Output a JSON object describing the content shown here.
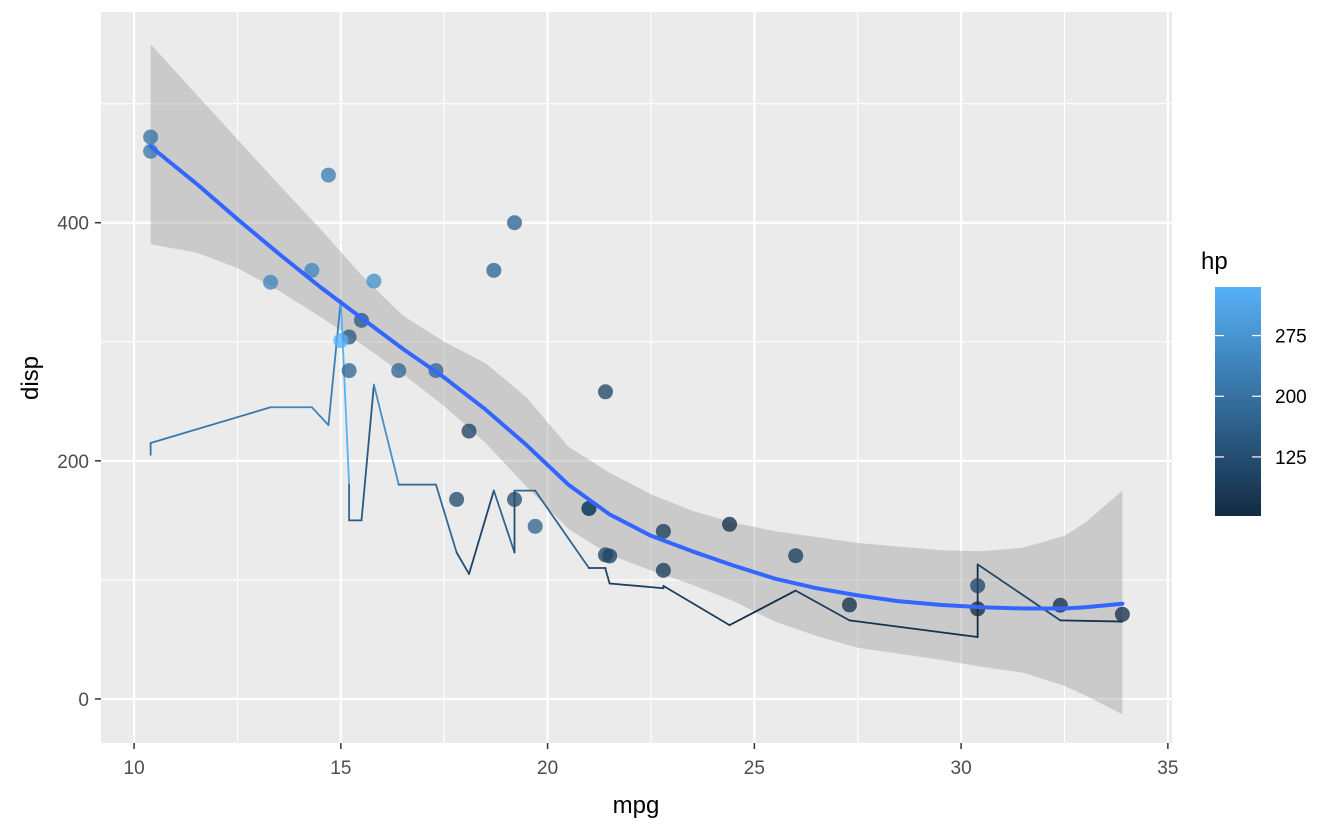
{
  "chart_data": {
    "type": "scatter",
    "title": "",
    "xlabel": "mpg",
    "ylabel": "disp",
    "xlim": [
      9.2,
      35.1
    ],
    "ylim": [
      -37,
      577
    ],
    "x_ticks": [
      10,
      15,
      20,
      25,
      30,
      35
    ],
    "x_tick_labels": [
      "10",
      "15",
      "20",
      "25",
      "30",
      "35"
    ],
    "y_ticks": [
      0,
      200,
      400
    ],
    "y_tick_labels": [
      "0",
      "200",
      "400"
    ],
    "grid": true,
    "legend": {
      "title": "hp",
      "placement": "right",
      "type": "colorbar",
      "range": [
        52,
        335
      ],
      "ticks": [
        125,
        200,
        275
      ],
      "tick_labels": [
        "125",
        "200",
        "275"
      ],
      "low_color": "#132B43",
      "high_color": "#56B1F7"
    },
    "points": [
      {
        "mpg": 21.0,
        "disp": 160,
        "hp": 110
      },
      {
        "mpg": 21.0,
        "disp": 160,
        "hp": 110
      },
      {
        "mpg": 22.8,
        "disp": 108,
        "hp": 93
      },
      {
        "mpg": 21.4,
        "disp": 258,
        "hp": 110
      },
      {
        "mpg": 18.7,
        "disp": 360,
        "hp": 175
      },
      {
        "mpg": 18.1,
        "disp": 225,
        "hp": 105
      },
      {
        "mpg": 14.3,
        "disp": 360,
        "hp": 245
      },
      {
        "mpg": 24.4,
        "disp": 146.7,
        "hp": 62
      },
      {
        "mpg": 22.8,
        "disp": 140.8,
        "hp": 95
      },
      {
        "mpg": 19.2,
        "disp": 167.6,
        "hp": 123
      },
      {
        "mpg": 17.8,
        "disp": 167.6,
        "hp": 123
      },
      {
        "mpg": 16.4,
        "disp": 275.8,
        "hp": 180
      },
      {
        "mpg": 17.3,
        "disp": 275.8,
        "hp": 180
      },
      {
        "mpg": 15.2,
        "disp": 275.8,
        "hp": 180
      },
      {
        "mpg": 10.4,
        "disp": 472,
        "hp": 205
      },
      {
        "mpg": 10.4,
        "disp": 460,
        "hp": 215
      },
      {
        "mpg": 14.7,
        "disp": 440,
        "hp": 230
      },
      {
        "mpg": 32.4,
        "disp": 78.7,
        "hp": 66
      },
      {
        "mpg": 30.4,
        "disp": 75.7,
        "hp": 52
      },
      {
        "mpg": 33.9,
        "disp": 71.1,
        "hp": 65
      },
      {
        "mpg": 21.5,
        "disp": 120.1,
        "hp": 97
      },
      {
        "mpg": 15.5,
        "disp": 318,
        "hp": 150
      },
      {
        "mpg": 15.2,
        "disp": 304,
        "hp": 150
      },
      {
        "mpg": 13.3,
        "disp": 350,
        "hp": 245
      },
      {
        "mpg": 19.2,
        "disp": 400,
        "hp": 175
      },
      {
        "mpg": 27.3,
        "disp": 79,
        "hp": 66
      },
      {
        "mpg": 26.0,
        "disp": 120.3,
        "hp": 91
      },
      {
        "mpg": 30.4,
        "disp": 95.1,
        "hp": 113
      },
      {
        "mpg": 15.8,
        "disp": 351,
        "hp": 264
      },
      {
        "mpg": 19.7,
        "disp": 145,
        "hp": 175
      },
      {
        "mpg": 15.0,
        "disp": 301,
        "hp": 335
      },
      {
        "mpg": 21.4,
        "disp": 121,
        "hp": 109
      }
    ],
    "line_series": {
      "name": "hp",
      "stat": "identity",
      "points": [
        {
          "x": 10.4,
          "y": 205,
          "c": 205
        },
        {
          "x": 10.4,
          "y": 215,
          "c": 215
        },
        {
          "x": 13.3,
          "y": 245,
          "c": 245
        },
        {
          "x": 14.3,
          "y": 245,
          "c": 245
        },
        {
          "x": 14.7,
          "y": 230,
          "c": 230
        },
        {
          "x": 15.0,
          "y": 335,
          "c": 335
        },
        {
          "x": 15.2,
          "y": 180,
          "c": 180
        },
        {
          "x": 15.2,
          "y": 150,
          "c": 150
        },
        {
          "x": 15.5,
          "y": 150,
          "c": 150
        },
        {
          "x": 15.8,
          "y": 264,
          "c": 264
        },
        {
          "x": 16.4,
          "y": 180,
          "c": 180
        },
        {
          "x": 17.3,
          "y": 180,
          "c": 180
        },
        {
          "x": 17.8,
          "y": 123,
          "c": 123
        },
        {
          "x": 18.1,
          "y": 105,
          "c": 105
        },
        {
          "x": 18.7,
          "y": 175,
          "c": 175
        },
        {
          "x": 19.2,
          "y": 123,
          "c": 123
        },
        {
          "x": 19.2,
          "y": 175,
          "c": 175
        },
        {
          "x": 19.7,
          "y": 175,
          "c": 175
        },
        {
          "x": 21.0,
          "y": 110,
          "c": 110
        },
        {
          "x": 21.0,
          "y": 110,
          "c": 110
        },
        {
          "x": 21.4,
          "y": 110,
          "c": 110
        },
        {
          "x": 21.4,
          "y": 109,
          "c": 109
        },
        {
          "x": 21.5,
          "y": 97,
          "c": 97
        },
        {
          "x": 22.8,
          "y": 93,
          "c": 93
        },
        {
          "x": 22.8,
          "y": 95,
          "c": 95
        },
        {
          "x": 24.4,
          "y": 62,
          "c": 62
        },
        {
          "x": 26.0,
          "y": 91,
          "c": 91
        },
        {
          "x": 27.3,
          "y": 66,
          "c": 66
        },
        {
          "x": 30.4,
          "y": 52,
          "c": 52
        },
        {
          "x": 30.4,
          "y": 113,
          "c": 113
        },
        {
          "x": 32.4,
          "y": 66,
          "c": 66
        },
        {
          "x": 33.9,
          "y": 65,
          "c": 65
        }
      ]
    },
    "smooth": {
      "method": "loess",
      "color": "#3366FF",
      "band_color": "#999999",
      "fit": [
        {
          "x": 10.4,
          "y": 464,
          "lo": 382,
          "hi": 550
        },
        {
          "x": 11.5,
          "y": 433,
          "lo": 375,
          "hi": 508
        },
        {
          "x": 12.5,
          "y": 403,
          "lo": 362,
          "hi": 470
        },
        {
          "x": 13.5,
          "y": 374,
          "lo": 343,
          "hi": 432
        },
        {
          "x": 14.5,
          "y": 346,
          "lo": 321,
          "hi": 395
        },
        {
          "x": 15.5,
          "y": 320,
          "lo": 298,
          "hi": 356
        },
        {
          "x": 16.5,
          "y": 294,
          "lo": 273,
          "hi": 322
        },
        {
          "x": 17.5,
          "y": 270,
          "lo": 246,
          "hi": 300
        },
        {
          "x": 18.5,
          "y": 243,
          "lo": 215,
          "hi": 282
        },
        {
          "x": 19.5,
          "y": 213,
          "lo": 178,
          "hi": 253
        },
        {
          "x": 20.5,
          "y": 180,
          "lo": 143,
          "hi": 212
        },
        {
          "x": 21.5,
          "y": 155,
          "lo": 121,
          "hi": 190
        },
        {
          "x": 22.5,
          "y": 137,
          "lo": 108,
          "hi": 172
        },
        {
          "x": 23.5,
          "y": 124,
          "lo": 96,
          "hi": 158
        },
        {
          "x": 24.5,
          "y": 112,
          "lo": 82,
          "hi": 148
        },
        {
          "x": 25.5,
          "y": 101,
          "lo": 65,
          "hi": 141
        },
        {
          "x": 26.5,
          "y": 93,
          "lo": 53,
          "hi": 136
        },
        {
          "x": 27.5,
          "y": 87,
          "lo": 43,
          "hi": 131
        },
        {
          "x": 28.5,
          "y": 82,
          "lo": 38,
          "hi": 128
        },
        {
          "x": 29.5,
          "y": 79,
          "lo": 33,
          "hi": 125
        },
        {
          "x": 30.5,
          "y": 77,
          "lo": 27,
          "hi": 124
        },
        {
          "x": 31.5,
          "y": 76,
          "lo": 22,
          "hi": 127
        },
        {
          "x": 32.5,
          "y": 76,
          "lo": 11,
          "hi": 137
        },
        {
          "x": 33.0,
          "y": 77,
          "lo": 3,
          "hi": 148
        },
        {
          "x": 33.9,
          "y": 80,
          "lo": -13,
          "hi": 175
        }
      ]
    }
  }
}
